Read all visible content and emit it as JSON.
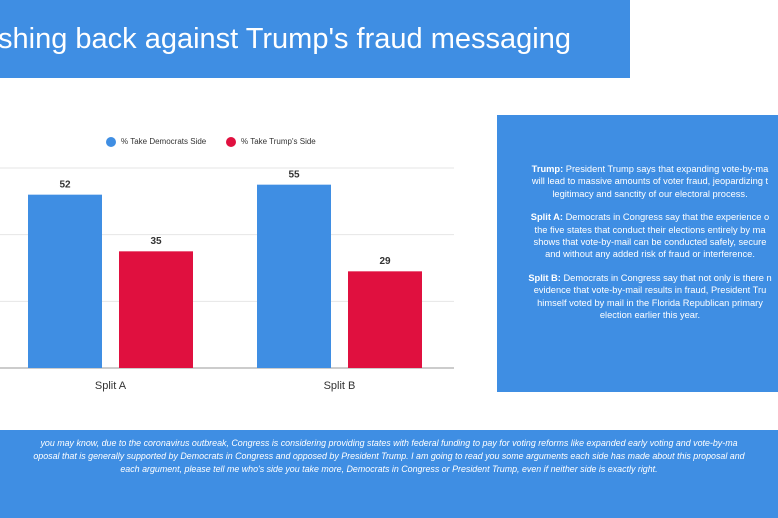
{
  "slide": {
    "title": "shing back against Trump's fraud messaging",
    "panel": [
      {
        "label": "Trump:",
        "lines": [
          " President Trump says that expanding vote-by-ma",
          "will lead to massive amounts of voter fraud, jeopardizing t",
          "legitimacy and sanctity of our electoral process."
        ]
      },
      {
        "label": "Split A:",
        "lines": [
          " Democrats in Congress say that the experience o",
          "the five states that conduct their elections entirely by ma",
          "shows that vote-by-mail can be conducted safely, secure",
          "and without any added risk of fraud or interference."
        ]
      },
      {
        "label": "Split B:",
        "lines": [
          " Democrats in Congress say that not only is there n",
          "evidence that vote-by-mail results in fraud, President Tru",
          "himself voted by mail in the Florida Republican primary",
          "election earlier this year."
        ]
      }
    ],
    "footer": [
      "you may know, due to the coronavirus outbreak, Congress is considering providing states with federal funding to pay for voting reforms like expanded early voting and vote-by-ma",
      "oposal that is generally supported by Democrats in Congress and opposed by President Trump. I am going to read you some arguments each side has made about this proposal and",
      "each argument, please tell me who's side you take more, Democrats in Congress or President Trump, even if neither side is exactly right."
    ]
  },
  "chart_data": {
    "type": "bar",
    "categories": [
      "Split A",
      "Split B"
    ],
    "series": [
      {
        "name": "% Take Democrats Side",
        "color": "#3f8ee3",
        "values": [
          52,
          55
        ]
      },
      {
        "name": "% Take Trump's Side",
        "color": "#e0103f",
        "values": [
          35,
          29
        ]
      }
    ],
    "ylim": [
      0,
      60
    ],
    "yticks": [
      0,
      20,
      40,
      60
    ],
    "grid": true
  }
}
